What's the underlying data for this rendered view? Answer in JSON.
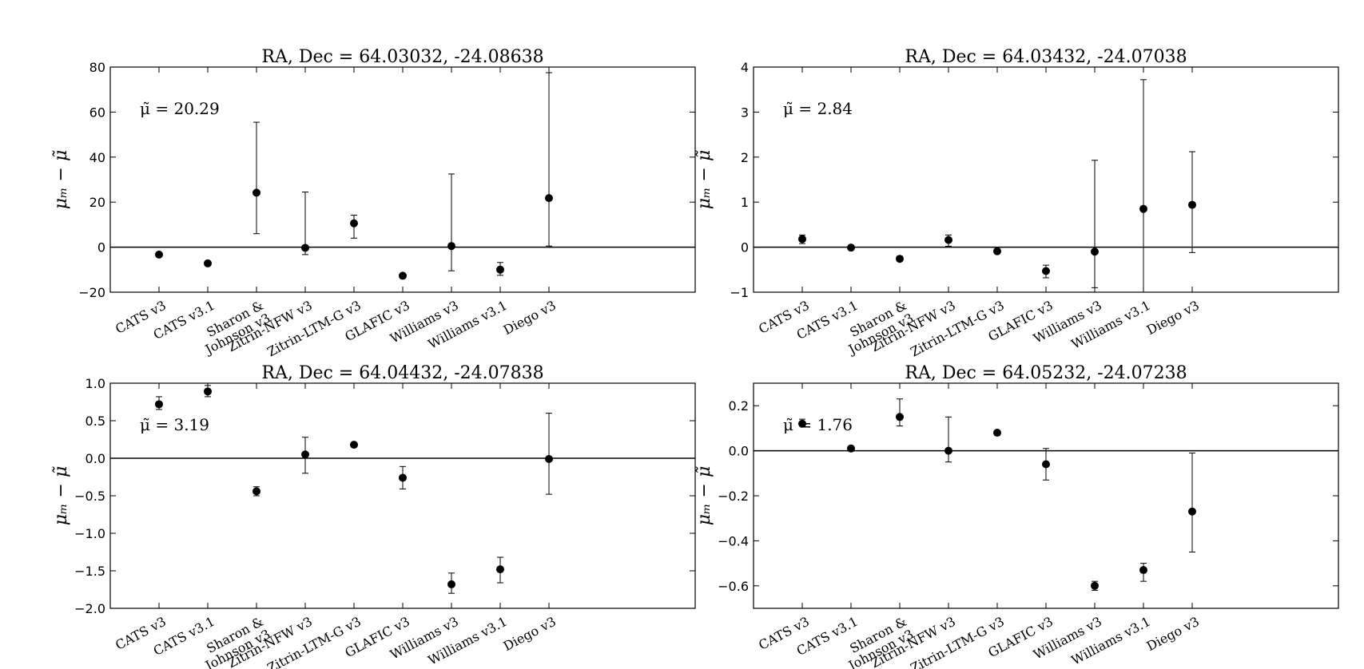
{
  "chart_data": [
    {
      "type": "scatter",
      "title": "RA, Dec = 64.03032, -24.08638",
      "ylabel": "μₘ − μ̃",
      "annotation": "μ̃ = 20.29",
      "ylim": [
        -20,
        80
      ],
      "yticks": [
        -20,
        0,
        20,
        40,
        60,
        80
      ],
      "ytick_labels": [
        "−20",
        "0",
        "20",
        "40",
        "60",
        "80"
      ],
      "zero_line": true,
      "categories": [
        "CATS v3",
        "CATS v3.1",
        "Sharon & Johnson v3",
        "Zitrin-NFW v3",
        "Zitrin-LTM-G v3",
        "GLAFIC v3",
        "Williams v3",
        "Williams v3.1",
        "Diego v3"
      ],
      "category_lines": [
        [
          "CATS v3"
        ],
        [
          "CATS v3.1"
        ],
        [
          "Sharon &",
          "Johnson v3"
        ],
        [
          "Zitrin-NFW v3"
        ],
        [
          "Zitrin-LTM-G v3"
        ],
        [
          "GLAFIC v3"
        ],
        [
          "Williams v3"
        ],
        [
          "Williams v3.1"
        ],
        [
          "Diego v3"
        ]
      ],
      "values": [
        -3.3,
        -7.2,
        24.2,
        -0.3,
        10.6,
        -12.7,
        0.5,
        -10.0,
        21.8
      ],
      "err_low": [
        -3.3,
        -7.2,
        6.0,
        -3.3,
        4.0,
        -12.7,
        -10.5,
        -12.5,
        0.5
      ],
      "err_high": [
        -3.3,
        -7.2,
        55.5,
        24.5,
        14.2,
        -12.7,
        32.5,
        -6.8,
        77.5
      ]
    },
    {
      "type": "scatter",
      "title": "RA, Dec = 64.03432, -24.07038",
      "ylabel": "μₘ − μ̃",
      "annotation": "μ̃ = 2.84",
      "ylim": [
        -1,
        4
      ],
      "yticks": [
        -1,
        0,
        1,
        2,
        3,
        4
      ],
      "ytick_labels": [
        "−1",
        "0",
        "1",
        "2",
        "3",
        "4"
      ],
      "zero_line": true,
      "categories": [
        "CATS v3",
        "CATS v3.1",
        "Sharon & Johnson v3",
        "Zitrin-NFW v3",
        "Zitrin-LTM-G v3",
        "GLAFIC v3",
        "Williams v3",
        "Williams v3.1",
        "Diego v3"
      ],
      "category_lines": [
        [
          "CATS v3"
        ],
        [
          "CATS v3.1"
        ],
        [
          "Sharon &",
          "Johnson v3"
        ],
        [
          "Zitrin-NFW v3"
        ],
        [
          "Zitrin-LTM-G v3"
        ],
        [
          "GLAFIC v3"
        ],
        [
          "Williams v3"
        ],
        [
          "Williams v3.1"
        ],
        [
          "Diego v3"
        ]
      ],
      "values": [
        0.18,
        -0.01,
        -0.26,
        0.16,
        -0.09,
        -0.53,
        -0.1,
        0.85,
        0.94
      ],
      "err_low": [
        0.08,
        -0.01,
        -0.3,
        0.02,
        -0.09,
        -0.68,
        -0.9,
        -1.0,
        -0.12
      ],
      "err_high": [
        0.27,
        -0.01,
        -0.2,
        0.27,
        -0.09,
        -0.4,
        1.93,
        3.72,
        2.12
      ]
    },
    {
      "type": "scatter",
      "title": "RA, Dec = 64.04432, -24.07838",
      "ylabel": "μₘ − μ̃",
      "annotation": "μ̃ = 3.19",
      "ylim": [
        -2.0,
        1.0
      ],
      "yticks": [
        -2.0,
        -1.5,
        -1.0,
        -0.5,
        0.0,
        0.5,
        1.0
      ],
      "ytick_labels": [
        "−2.0",
        "−1.5",
        "−1.0",
        "−0.5",
        "0.0",
        "0.5",
        "1.0"
      ],
      "zero_line": true,
      "categories": [
        "CATS v3",
        "CATS v3.1",
        "Sharon & Johnson v3",
        "Zitrin-NFW v3",
        "Zitrin-LTM-G v3",
        "GLAFIC v3",
        "Williams v3",
        "Williams v3.1",
        "Diego v3"
      ],
      "category_lines": [
        [
          "CATS v3"
        ],
        [
          "CATS v3.1"
        ],
        [
          "Sharon &",
          "Johnson v3"
        ],
        [
          "Zitrin-NFW v3"
        ],
        [
          "Zitrin-LTM-G v3"
        ],
        [
          "GLAFIC v3"
        ],
        [
          "Williams v3"
        ],
        [
          "Williams v3.1"
        ],
        [
          "Diego v3"
        ]
      ],
      "values": [
        0.72,
        0.89,
        -0.44,
        0.05,
        0.18,
        -0.26,
        -1.68,
        -1.48,
        -0.01
      ],
      "err_low": [
        0.65,
        0.82,
        -0.5,
        -0.2,
        0.16,
        -0.41,
        -1.8,
        -1.66,
        -0.48
      ],
      "err_high": [
        0.82,
        0.97,
        -0.38,
        0.28,
        0.2,
        -0.11,
        -1.53,
        -1.32,
        0.6
      ]
    },
    {
      "type": "scatter",
      "title": "RA, Dec = 64.05232, -24.07238",
      "ylabel": "μₘ − μ̃",
      "annotation": "μ̃ = 1.76",
      "ylim": [
        -0.7,
        0.3
      ],
      "yticks": [
        -0.6,
        -0.4,
        -0.2,
        0.0,
        0.2
      ],
      "ytick_labels": [
        "−0.6",
        "−0.4",
        "−0.2",
        "0.0",
        "0.2"
      ],
      "zero_line": true,
      "categories": [
        "CATS v3",
        "CATS v3.1",
        "Sharon & Johnson v3",
        "Zitrin-NFW v3",
        "Zitrin-LTM-G v3",
        "GLAFIC v3",
        "Williams v3",
        "Williams v3.1",
        "Diego v3"
      ],
      "category_lines": [
        [
          "CATS v3"
        ],
        [
          "CATS v3.1"
        ],
        [
          "Sharon &",
          "Johnson v3"
        ],
        [
          "Zitrin-NFW v3"
        ],
        [
          "Zitrin-LTM-G v3"
        ],
        [
          "GLAFIC v3"
        ],
        [
          "Williams v3"
        ],
        [
          "Williams v3.1"
        ],
        [
          "Diego v3"
        ]
      ],
      "values": [
        0.12,
        0.01,
        0.15,
        0.0,
        0.08,
        -0.06,
        -0.6,
        -0.53,
        -0.27
      ],
      "err_low": [
        0.11,
        0.01,
        0.11,
        -0.05,
        0.08,
        -0.13,
        -0.62,
        -0.58,
        -0.45
      ],
      "err_high": [
        0.14,
        0.01,
        0.23,
        0.15,
        0.08,
        0.01,
        -0.58,
        -0.5,
        -0.01
      ]
    }
  ]
}
